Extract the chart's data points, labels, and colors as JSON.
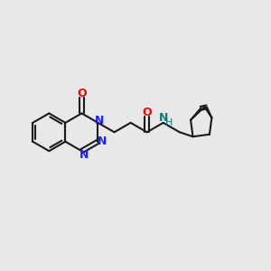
{
  "bg_color": "#e8e8e8",
  "line_color": "#1a1a1a",
  "N_color": "#2020ff",
  "O_color": "#ff0000",
  "NH_color": "#008080",
  "line_width": 1.5,
  "font_size": 9,
  "figsize": [
    3.0,
    3.0
  ],
  "dpi": 100,
  "xlim": [
    0,
    12
  ],
  "ylim": [
    0,
    12
  ]
}
